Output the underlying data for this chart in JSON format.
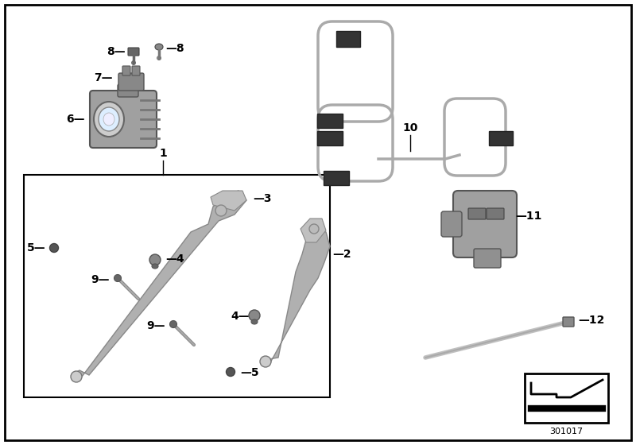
{
  "background_color": "#ffffff",
  "border_color": "#000000",
  "diagram_num": "301017",
  "fig_width": 8.0,
  "fig_height": 5.6,
  "gray_dark": "#555555",
  "gray_mid": "#888888",
  "gray_light": "#bbbbbb",
  "gray_part": "#aaaaaa",
  "gray_body": "#999999",
  "black": "#000000",
  "white": "#ffffff",
  "part_color": "#a0a0a0",
  "connector_color": "#444444",
  "wire_color": "#aaaaaa"
}
